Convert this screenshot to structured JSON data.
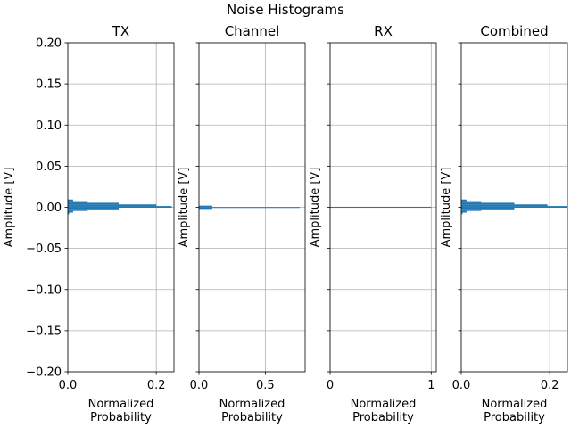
{
  "figure": {
    "suptitle": "Noise Histograms"
  },
  "chart_data": [
    {
      "type": "bar",
      "orientation": "horizontal",
      "title": "TX",
      "xlabel": [
        "Normalized",
        "Probability"
      ],
      "ylabel": "Amplitude [V]",
      "xlim": [
        0,
        0.24
      ],
      "ylim": [
        -0.2,
        0.2
      ],
      "xticks": [
        {
          "v": 0,
          "label": "0.0"
        },
        {
          "v": 0.2,
          "label": "0.2"
        }
      ],
      "yticks": [
        {
          "v": -0.2,
          "label": "−0.20"
        },
        {
          "v": -0.15,
          "label": "−0.15"
        },
        {
          "v": -0.1,
          "label": "−0.10"
        },
        {
          "v": -0.05,
          "label": "−0.05"
        },
        {
          "v": 0,
          "label": "0.00"
        },
        {
          "v": 0.05,
          "label": "0.05"
        },
        {
          "v": 0.1,
          "label": "0.10"
        },
        {
          "v": 0.15,
          "label": "0.15"
        },
        {
          "v": 0.2,
          "label": "0.20"
        }
      ],
      "show_ytick_labels": true,
      "grid": true,
      "color": "#1f77b4",
      "bins": [
        {
          "y0": -0.0085,
          "y1": -0.0065,
          "value": 0.003
        },
        {
          "y0": -0.0065,
          "y1": -0.0045,
          "value": 0.012
        },
        {
          "y0": -0.0045,
          "y1": -0.0025,
          "value": 0.045
        },
        {
          "y0": -0.0025,
          "y1": -0.0005,
          "value": 0.115
        },
        {
          "y0": -0.0005,
          "y1": 0.0015,
          "value": 0.235
        },
        {
          "y0": 0.0015,
          "y1": 0.0035,
          "value": 0.2
        },
        {
          "y0": 0.0035,
          "y1": 0.0055,
          "value": 0.115
        },
        {
          "y0": 0.0055,
          "y1": 0.0075,
          "value": 0.045
        },
        {
          "y0": 0.0075,
          "y1": 0.0095,
          "value": 0.012
        }
      ]
    },
    {
      "type": "bar",
      "orientation": "horizontal",
      "title": "Channel",
      "xlabel": [
        "Normalized",
        "Probability"
      ],
      "ylabel": "Amplitude [V]",
      "xlim": [
        0,
        0.8
      ],
      "ylim": [
        -0.2,
        0.2
      ],
      "xticks": [
        {
          "v": 0,
          "label": "0.0"
        },
        {
          "v": 0.5,
          "label": "0.5"
        }
      ],
      "yticks": [
        {
          "v": -0.2,
          "label": ""
        },
        {
          "v": -0.15,
          "label": ""
        },
        {
          "v": -0.1,
          "label": ""
        },
        {
          "v": -0.05,
          "label": ""
        },
        {
          "v": 0,
          "label": ""
        },
        {
          "v": 0.05,
          "label": ""
        },
        {
          "v": 0.1,
          "label": ""
        },
        {
          "v": 0.15,
          "label": ""
        },
        {
          "v": 0.2,
          "label": ""
        }
      ],
      "show_ytick_labels": false,
      "grid": true,
      "color": "#1f77b4",
      "bins": [
        {
          "y0": -0.002,
          "y1": -0.0003,
          "value": 0.1
        },
        {
          "y0": -0.0003,
          "y1": 0.0003,
          "value": 0.76
        },
        {
          "y0": 0.0003,
          "y1": 0.002,
          "value": 0.1
        }
      ]
    },
    {
      "type": "bar",
      "orientation": "horizontal",
      "title": "RX",
      "xlabel": [
        "Normalized",
        "Probability"
      ],
      "ylabel": "Amplitude [V]",
      "xlim": [
        0,
        1.05
      ],
      "ylim": [
        -0.2,
        0.2
      ],
      "xticks": [
        {
          "v": 0,
          "label": "0"
        },
        {
          "v": 1,
          "label": "1"
        }
      ],
      "yticks": [
        {
          "v": -0.2,
          "label": ""
        },
        {
          "v": -0.15,
          "label": ""
        },
        {
          "v": -0.1,
          "label": ""
        },
        {
          "v": -0.05,
          "label": ""
        },
        {
          "v": 0,
          "label": ""
        },
        {
          "v": 0.05,
          "label": ""
        },
        {
          "v": 0.1,
          "label": ""
        },
        {
          "v": 0.15,
          "label": ""
        },
        {
          "v": 0.2,
          "label": ""
        }
      ],
      "show_ytick_labels": false,
      "grid": true,
      "color": "#1f77b4",
      "bins": [
        {
          "y0": -0.0006,
          "y1": 0.0006,
          "value": 1.0
        }
      ]
    },
    {
      "type": "bar",
      "orientation": "horizontal",
      "title": "Combined",
      "xlabel": [
        "Normalized",
        "Probability"
      ],
      "ylabel": "Amplitude [V]",
      "xlim": [
        0,
        0.24
      ],
      "ylim": [
        -0.2,
        0.2
      ],
      "xticks": [
        {
          "v": 0,
          "label": "0.0"
        },
        {
          "v": 0.2,
          "label": "0.2"
        }
      ],
      "yticks": [
        {
          "v": -0.2,
          "label": ""
        },
        {
          "v": -0.15,
          "label": ""
        },
        {
          "v": -0.1,
          "label": ""
        },
        {
          "v": -0.05,
          "label": ""
        },
        {
          "v": 0,
          "label": ""
        },
        {
          "v": 0.05,
          "label": ""
        },
        {
          "v": 0.1,
          "label": ""
        },
        {
          "v": 0.15,
          "label": ""
        },
        {
          "v": 0.2,
          "label": ""
        }
      ],
      "show_ytick_labels": false,
      "grid": true,
      "color": "#1f77b4",
      "bins": [
        {
          "y0": -0.0085,
          "y1": -0.0065,
          "value": 0.003
        },
        {
          "y0": -0.0065,
          "y1": -0.0045,
          "value": 0.012
        },
        {
          "y0": -0.0045,
          "y1": -0.0025,
          "value": 0.045
        },
        {
          "y0": -0.0025,
          "y1": -0.0005,
          "value": 0.12
        },
        {
          "y0": -0.0005,
          "y1": 0.0015,
          "value": 0.24
        },
        {
          "y0": 0.0015,
          "y1": 0.0035,
          "value": 0.195
        },
        {
          "y0": 0.0035,
          "y1": 0.0055,
          "value": 0.12
        },
        {
          "y0": 0.0055,
          "y1": 0.0075,
          "value": 0.045
        },
        {
          "y0": 0.0075,
          "y1": 0.0095,
          "value": 0.012
        }
      ]
    }
  ]
}
